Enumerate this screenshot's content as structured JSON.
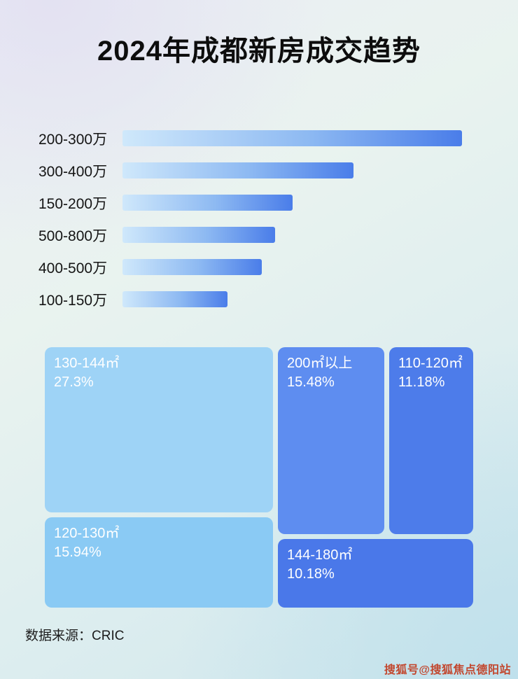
{
  "page": {
    "title": "2024年成都新房成交趋势",
    "footer": "数据来源：CRIC",
    "watermark": "搜狐号@搜狐焦点德阳站"
  },
  "chart_data": [
    {
      "type": "bar",
      "orientation": "horizontal",
      "categories": [
        "200-300万",
        "300-400万",
        "150-200万",
        "500-800万",
        "400-500万",
        "100-150万"
      ],
      "values": [
        100,
        68,
        50,
        45,
        41,
        31
      ],
      "value_note": "relative bar lengths (% of longest bar); no numeric labels shown in image",
      "bar_gradient": [
        "#cfe8fb",
        "#4a7de9"
      ],
      "grid": false,
      "legend": false
    },
    {
      "type": "treemap",
      "items": [
        {
          "label": "130-144㎡",
          "percent": "27.3%",
          "value": 27.3,
          "color": "#9ed3f6"
        },
        {
          "label": "120-130㎡",
          "percent": "15.94%",
          "value": 15.94,
          "color": "#8acaf4"
        },
        {
          "label": "200㎡以上",
          "percent": "15.48%",
          "value": 15.48,
          "color": "#5e8df0"
        },
        {
          "label": "110-120㎡",
          "percent": "11.18%",
          "value": 11.18,
          "color": "#4d7cea"
        },
        {
          "label": "144-180㎡",
          "percent": "10.18%",
          "value": 10.18,
          "color": "#4a78e9"
        }
      ],
      "legend": false
    }
  ]
}
